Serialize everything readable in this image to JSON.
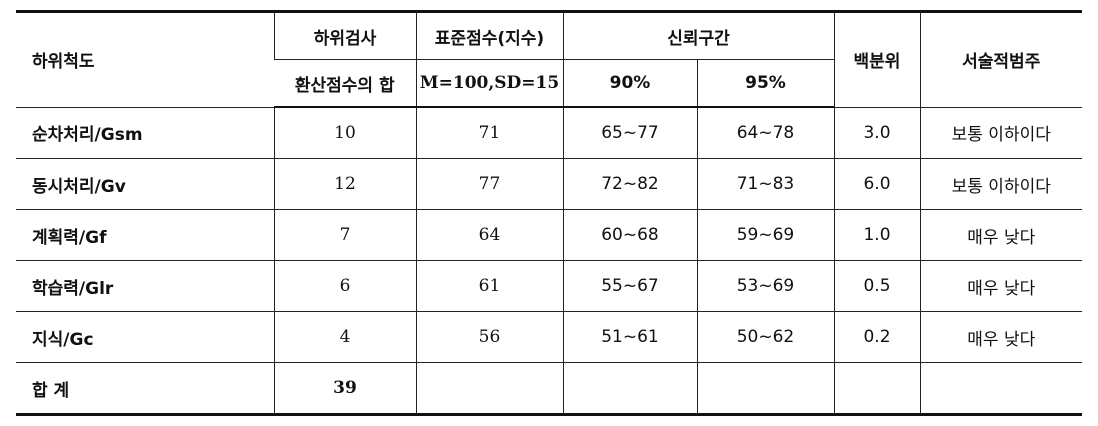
{
  "header": {
    "subscale": "하위척도",
    "subtest": "하위검사",
    "subtest_sub": "환산점수의 합",
    "standard": "표준점수(지수)",
    "standard_sub": "M=100,SD=15",
    "ci": "신뢰구간",
    "ci90": "90%",
    "ci95": "95%",
    "percentile": "백분위",
    "category": "서술적범주"
  },
  "rows": [
    {
      "name": "순차처리/Gsm",
      "sum": "10",
      "std": "71",
      "ci90": "65~77",
      "ci95": "64~78",
      "pct": "3.0",
      "cat": "보통 이하이다"
    },
    {
      "name": "동시처리/Gv",
      "sum": "12",
      "std": "77",
      "ci90": "72~82",
      "ci95": "71~83",
      "pct": "6.0",
      "cat": "보통 이하이다"
    },
    {
      "name": "계획력/Gf",
      "sum": "7",
      "std": "64",
      "ci90": "60~68",
      "ci95": "59~69",
      "pct": "1.0",
      "cat": "매우 낮다"
    },
    {
      "name": "학습력/Glr",
      "sum": "6",
      "std": "61",
      "ci90": "55~67",
      "ci95": "53~69",
      "pct": "0.5",
      "cat": "매우 낮다"
    },
    {
      "name": "지식/Gc",
      "sum": "4",
      "std": "56",
      "ci90": "51~61",
      "ci95": "50~62",
      "pct": "0.2",
      "cat": "매우 낮다"
    }
  ],
  "total": {
    "name": "합 계",
    "sum": "39"
  }
}
